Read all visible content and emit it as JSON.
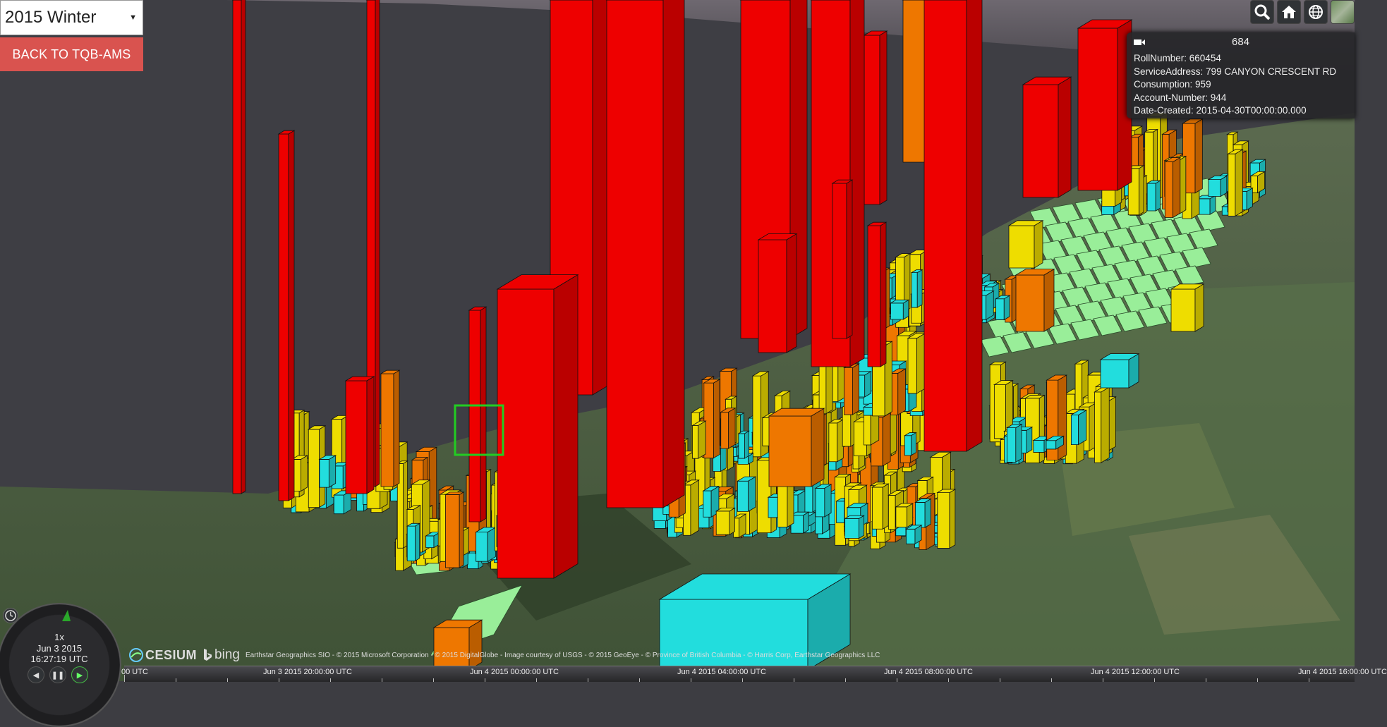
{
  "season_select": {
    "value": "2015 Winter"
  },
  "back_button": {
    "label": "BACK TO TQB-AMS"
  },
  "toolbar": {
    "icons": [
      "search-icon",
      "home-icon",
      "globe-icon",
      "base-layer-picker"
    ]
  },
  "infobox": {
    "title": "684",
    "fields": [
      {
        "label": "RollNumber:",
        "value": "660454"
      },
      {
        "label": "ServiceAddress:",
        "value": "799 CANYON CRESCENT RD"
      },
      {
        "label": "Consumption:",
        "value": "959"
      },
      {
        "label": "Account-Number:",
        "value": "944"
      },
      {
        "label": "Date-Created:",
        "value": "2015-04-30T00:00:00.000"
      }
    ]
  },
  "clock": {
    "rate": "1x",
    "date": "Jun 3 2015",
    "time": "16:27:19 UTC"
  },
  "credits": {
    "cesium": "CESIUM",
    "bing": "bing",
    "text": "Earthstar Geographics SIO - © 2015 Microsoft Corporation - © 2015 DigitalGlobe - Image courtesy of USGS - © 2015 GeoEye - © Province of British Columbia - © Harris Corp, Earthstar Geographics LLC"
  },
  "timeline": {
    "labels": [
      "00 UTC",
      "Jun 3 2015 20:00:00 UTC",
      "Jun 4 2015 00:00:00 UTC",
      "Jun 4 2015 04:00:00 UTC",
      "Jun 4 2015 08:00:00 UTC",
      "Jun 4 2015 12:00:00 UTC",
      "Jun 4 2015 16:00:00 UTC"
    ]
  },
  "colors": {
    "very_high": "#ee0000",
    "high": "#ee7700",
    "medium": "#eedd00",
    "low": "#22dddd",
    "very_low": "#99ee99",
    "ocean": "#3d3d42",
    "land": "#4c5a3c"
  }
}
